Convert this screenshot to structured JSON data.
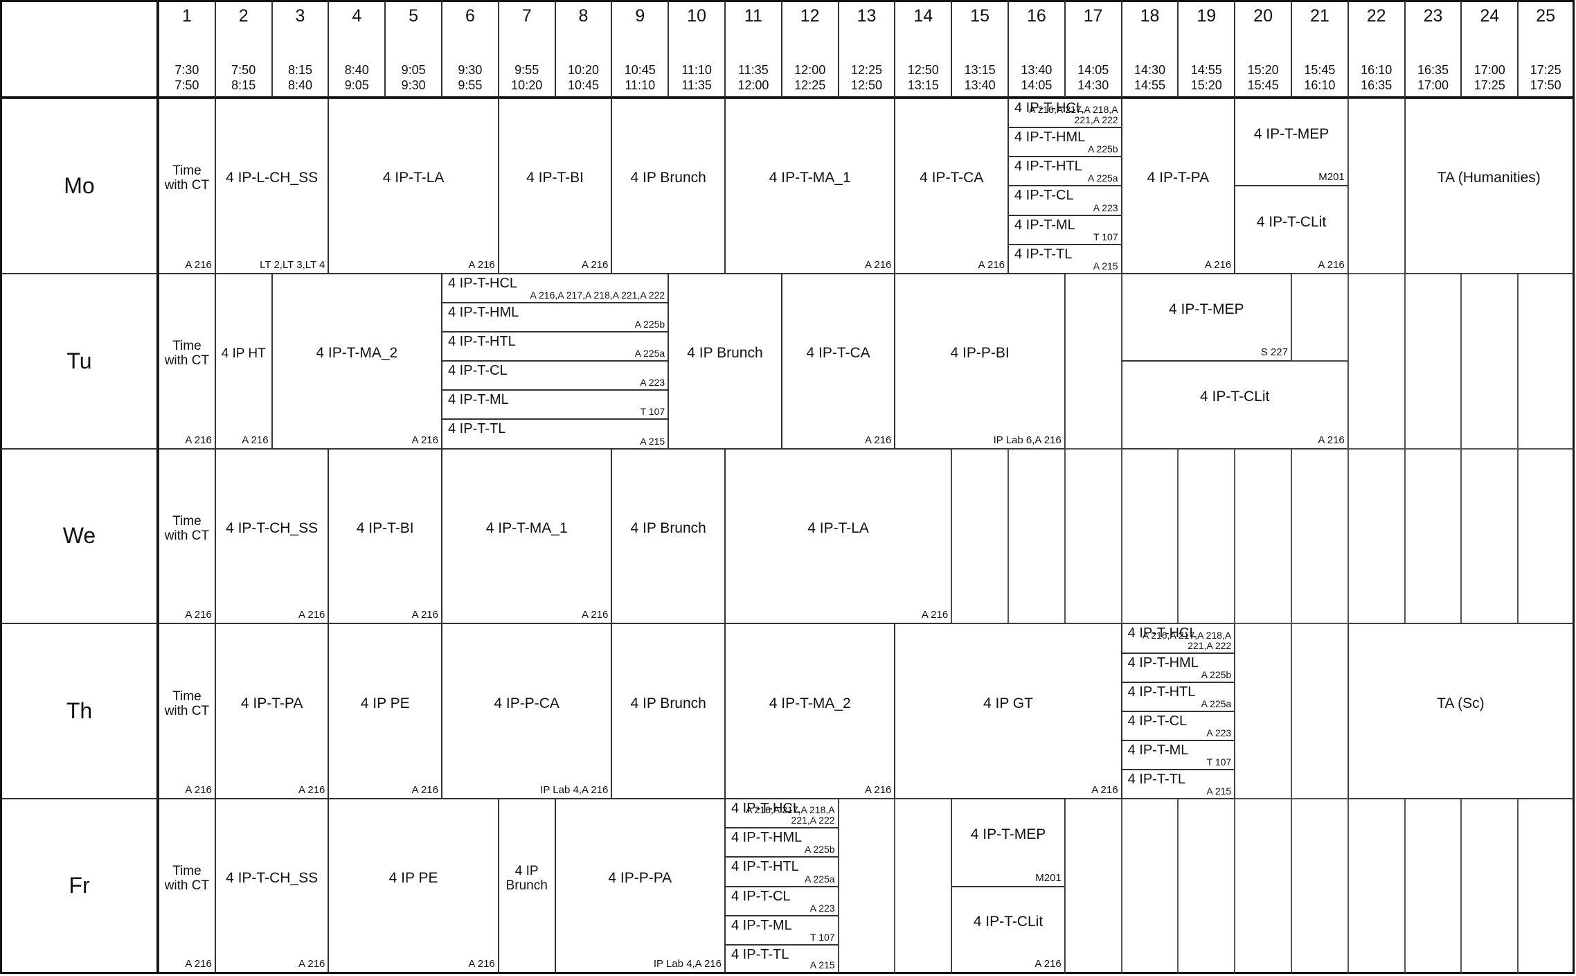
{
  "periods": [
    {
      "n": "1",
      "start": "7:30",
      "end": "7:50"
    },
    {
      "n": "2",
      "start": "7:50",
      "end": "8:15"
    },
    {
      "n": "3",
      "start": "8:15",
      "end": "8:40"
    },
    {
      "n": "4",
      "start": "8:40",
      "end": "9:05"
    },
    {
      "n": "5",
      "start": "9:05",
      "end": "9:30"
    },
    {
      "n": "6",
      "start": "9:30",
      "end": "9:55"
    },
    {
      "n": "7",
      "start": "9:55",
      "end": "10:20"
    },
    {
      "n": "8",
      "start": "10:20",
      "end": "10:45"
    },
    {
      "n": "9",
      "start": "10:45",
      "end": "11:10"
    },
    {
      "n": "10",
      "start": "11:10",
      "end": "11:35"
    },
    {
      "n": "11",
      "start": "11:35",
      "end": "12:00"
    },
    {
      "n": "12",
      "start": "12:00",
      "end": "12:25"
    },
    {
      "n": "13",
      "start": "12:25",
      "end": "12:50"
    },
    {
      "n": "14",
      "start": "12:50",
      "end": "13:15"
    },
    {
      "n": "15",
      "start": "13:15",
      "end": "13:40"
    },
    {
      "n": "16",
      "start": "13:40",
      "end": "14:05"
    },
    {
      "n": "17",
      "start": "14:05",
      "end": "14:30"
    },
    {
      "n": "18",
      "start": "14:30",
      "end": "14:55"
    },
    {
      "n": "19",
      "start": "14:55",
      "end": "15:20"
    },
    {
      "n": "20",
      "start": "15:20",
      "end": "15:45"
    },
    {
      "n": "21",
      "start": "15:45",
      "end": "16:10"
    },
    {
      "n": "22",
      "start": "16:10",
      "end": "16:35"
    },
    {
      "n": "23",
      "start": "16:35",
      "end": "17:00"
    },
    {
      "n": "24",
      "start": "17:00",
      "end": "17:25"
    },
    {
      "n": "25",
      "start": "17:25",
      "end": "17:50"
    }
  ],
  "days": [
    {
      "name": "Mo",
      "lessons": [
        {
          "from": 1,
          "span": 1,
          "label": "Time with CT",
          "room": "A 216"
        },
        {
          "from": 2,
          "span": 2,
          "label": "4 IP-L-CH_SS",
          "room": "LT 2,LT 3,LT 4"
        },
        {
          "from": 4,
          "span": 3,
          "label": "4 IP-T-LA",
          "room": "A 216"
        },
        {
          "from": 7,
          "span": 2,
          "label": "4 IP-T-BI",
          "room": "A 216"
        },
        {
          "from": 9,
          "span": 2,
          "label": "4 IP Brunch",
          "room": ""
        },
        {
          "from": 11,
          "span": 3,
          "label": "4 IP-T-MA_1",
          "room": "A 216"
        },
        {
          "from": 14,
          "span": 2,
          "label": "4 IP-T-CA",
          "room": "A 216"
        },
        {
          "from": 16,
          "span": 2,
          "stack": [
            {
              "label": "4 IP-T-HCL",
              "room": "A 216,A 217,A 218,A\n221,A 222"
            },
            {
              "label": "4 IP-T-HML",
              "room": "A 225b"
            },
            {
              "label": "4 IP-T-HTL",
              "room": "A 225a"
            },
            {
              "label": "4 IP-T-CL",
              "room": "A 223"
            },
            {
              "label": "4 IP-T-ML",
              "room": "T 107"
            },
            {
              "label": "4 IP-T-TL",
              "room": "A 215"
            }
          ]
        },
        {
          "from": 18,
          "span": 2,
          "label": "4 IP-T-PA",
          "room": "A 216"
        },
        {
          "from": 20,
          "span": 2,
          "halves": [
            {
              "label": "4 IP-T-MEP",
              "room": "M201"
            },
            {
              "label": "4 IP-T-CLit",
              "room": "A 216"
            }
          ]
        },
        {
          "from": 22,
          "span": 1,
          "empty": true
        },
        {
          "from": 23,
          "span": 3,
          "label": "TA (Humanities)",
          "room": ""
        }
      ]
    },
    {
      "name": "Tu",
      "lessons": [
        {
          "from": 1,
          "span": 1,
          "label": "Time with CT",
          "room": "A 216"
        },
        {
          "from": 2,
          "span": 1,
          "label": "4 IP HT",
          "room": "A 216"
        },
        {
          "from": 3,
          "span": 3,
          "label": "4 IP-T-MA_2",
          "room": "A 216"
        },
        {
          "from": 6,
          "span": 4,
          "stack": [
            {
              "label": "4 IP-T-HCL",
              "room": "A 216,A 217,A 218,A 221,A 222"
            },
            {
              "label": "4 IP-T-HML",
              "room": "A 225b"
            },
            {
              "label": "4 IP-T-HTL",
              "room": "A 225a"
            },
            {
              "label": "4 IP-T-CL",
              "room": "A 223"
            },
            {
              "label": "4 IP-T-ML",
              "room": "T 107"
            },
            {
              "label": "4 IP-T-TL",
              "room": "A 215"
            }
          ]
        },
        {
          "from": 10,
          "span": 2,
          "label": "4 IP Brunch",
          "room": ""
        },
        {
          "from": 12,
          "span": 2,
          "label": "4 IP-T-CA",
          "room": "A 216"
        },
        {
          "from": 14,
          "span": 3,
          "label": "4 IP-P-BI",
          "room": "IP Lab 6,A 216"
        },
        {
          "from": 17,
          "span": 1,
          "empty": true
        },
        {
          "from": 18,
          "span": 4,
          "halves": [
            {
              "label": "4 IP-T-MEP",
              "room": "S 227",
              "span": 3
            },
            {
              "label": "4 IP-T-CLit",
              "room": "A 216"
            }
          ]
        },
        {
          "from": 22,
          "span": 1,
          "empty": true
        },
        {
          "from": 23,
          "span": 1,
          "empty": true
        },
        {
          "from": 24,
          "span": 1,
          "empty": true
        },
        {
          "from": 25,
          "span": 1,
          "empty": true
        }
      ]
    },
    {
      "name": "We",
      "lessons": [
        {
          "from": 1,
          "span": 1,
          "label": "Time with CT",
          "room": "A 216"
        },
        {
          "from": 2,
          "span": 2,
          "label": "4 IP-T-CH_SS",
          "room": "A 216"
        },
        {
          "from": 4,
          "span": 2,
          "label": "4 IP-T-BI",
          "room": "A 216"
        },
        {
          "from": 6,
          "span": 3,
          "label": "4 IP-T-MA_1",
          "room": "A 216"
        },
        {
          "from": 9,
          "span": 2,
          "label": "4 IP Brunch",
          "room": ""
        },
        {
          "from": 11,
          "span": 4,
          "label": "4 IP-T-LA",
          "room": "A 216"
        },
        {
          "from": 15,
          "span": 1,
          "empty": true
        },
        {
          "from": 16,
          "span": 1,
          "empty": true
        },
        {
          "from": 17,
          "span": 1,
          "empty": true
        },
        {
          "from": 18,
          "span": 1,
          "empty": true
        },
        {
          "from": 19,
          "span": 1,
          "empty": true
        },
        {
          "from": 20,
          "span": 1,
          "empty": true
        },
        {
          "from": 21,
          "span": 1,
          "empty": true
        },
        {
          "from": 22,
          "span": 1,
          "empty": true
        },
        {
          "from": 23,
          "span": 1,
          "empty": true
        },
        {
          "from": 24,
          "span": 1,
          "empty": true
        },
        {
          "from": 25,
          "span": 1,
          "empty": true
        }
      ]
    },
    {
      "name": "Th",
      "lessons": [
        {
          "from": 1,
          "span": 1,
          "label": "Time with CT",
          "room": "A 216"
        },
        {
          "from": 2,
          "span": 2,
          "label": "4 IP-T-PA",
          "room": "A 216"
        },
        {
          "from": 4,
          "span": 2,
          "label": "4 IP PE",
          "room": "A 216"
        },
        {
          "from": 6,
          "span": 3,
          "label": "4 IP-P-CA",
          "room": "IP Lab 4,A 216"
        },
        {
          "from": 9,
          "span": 2,
          "label": "4 IP Brunch",
          "room": ""
        },
        {
          "from": 11,
          "span": 3,
          "label": "4 IP-T-MA_2",
          "room": "A 216"
        },
        {
          "from": 14,
          "span": 4,
          "label": "4 IP GT",
          "room": "A 216"
        },
        {
          "from": 18,
          "span": 2,
          "stack": [
            {
              "label": "4 IP-T-HCL",
              "room": "A 216,A 217,A 218,A\n221,A 222"
            },
            {
              "label": "4 IP-T-HML",
              "room": "A 225b"
            },
            {
              "label": "4 IP-T-HTL",
              "room": "A 225a"
            },
            {
              "label": "4 IP-T-CL",
              "room": "A 223"
            },
            {
              "label": "4 IP-T-ML",
              "room": "T 107"
            },
            {
              "label": "4 IP-T-TL",
              "room": "A 215"
            }
          ]
        },
        {
          "from": 20,
          "span": 1,
          "empty": true
        },
        {
          "from": 21,
          "span": 1,
          "empty": true
        },
        {
          "from": 22,
          "span": 4,
          "label": "TA (Sc)",
          "room": ""
        }
      ]
    },
    {
      "name": "Fr",
      "lessons": [
        {
          "from": 1,
          "span": 1,
          "label": "Time with CT",
          "room": "A 216"
        },
        {
          "from": 2,
          "span": 2,
          "label": "4 IP-T-CH_SS",
          "room": "A 216"
        },
        {
          "from": 4,
          "span": 3,
          "label": "4 IP PE",
          "room": "A 216"
        },
        {
          "from": 7,
          "span": 1,
          "label": "4 IP Brunch",
          "room": ""
        },
        {
          "from": 8,
          "span": 3,
          "label": "4 IP-P-PA",
          "room": "IP Lab 4,A 216"
        },
        {
          "from": 11,
          "span": 2,
          "stack": [
            {
              "label": "4 IP-T-HCL",
              "room": "A 216,A 217,A 218,A\n221,A 222"
            },
            {
              "label": "4 IP-T-HML",
              "room": "A 225b"
            },
            {
              "label": "4 IP-T-HTL",
              "room": "A 225a"
            },
            {
              "label": "4 IP-T-CL",
              "room": "A 223"
            },
            {
              "label": "4 IP-T-ML",
              "room": "T 107"
            },
            {
              "label": "4 IP-T-TL",
              "room": "A 215"
            }
          ]
        },
        {
          "from": 13,
          "span": 1,
          "empty": true
        },
        {
          "from": 14,
          "span": 1,
          "empty": true
        },
        {
          "from": 15,
          "span": 2,
          "halves": [
            {
              "label": "4 IP-T-MEP",
              "room": "M201"
            },
            {
              "label": "4 IP-T-CLit",
              "room": "A 216"
            }
          ]
        },
        {
          "from": 17,
          "span": 1,
          "empty": true
        },
        {
          "from": 18,
          "span": 1,
          "empty": true
        },
        {
          "from": 19,
          "span": 1,
          "empty": true
        },
        {
          "from": 20,
          "span": 1,
          "empty": true
        },
        {
          "from": 21,
          "span": 1,
          "empty": true
        },
        {
          "from": 22,
          "span": 1,
          "empty": true
        },
        {
          "from": 23,
          "span": 1,
          "empty": true
        },
        {
          "from": 24,
          "span": 1,
          "empty": true
        },
        {
          "from": 25,
          "span": 1,
          "empty": true
        }
      ]
    }
  ]
}
